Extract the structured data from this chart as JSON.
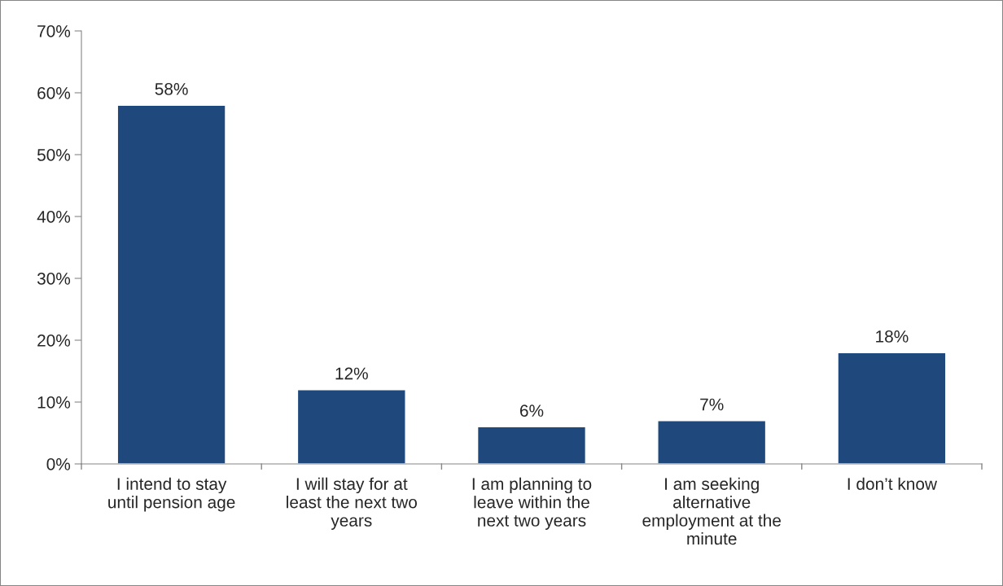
{
  "chart_data": {
    "type": "bar",
    "categories": [
      "I intend to stay\nuntil pension age",
      "I will stay for at\nleast the next two\nyears",
      "I am planning to\nleave within the\nnext two years",
      "I am seeking\nalternative\nemployment at the\nminute",
      "I don’t know"
    ],
    "values": [
      58,
      12,
      6,
      7,
      18
    ],
    "color": "#1f497d",
    "ylim": [
      0,
      70
    ],
    "yticks": [
      {
        "value": 0,
        "label": "0%"
      },
      {
        "value": 10,
        "label": "10%"
      },
      {
        "value": 20,
        "label": "20%"
      },
      {
        "value": 30,
        "label": "30%"
      },
      {
        "value": 40,
        "label": "40%"
      },
      {
        "value": 50,
        "label": "50%"
      },
      {
        "value": 60,
        "label": "60%"
      },
      {
        "value": 70,
        "label": "70%"
      }
    ],
    "value_labels": [
      "58%",
      "12%",
      "6%",
      "7%",
      "18%"
    ],
    "grid": false,
    "legend": false
  }
}
